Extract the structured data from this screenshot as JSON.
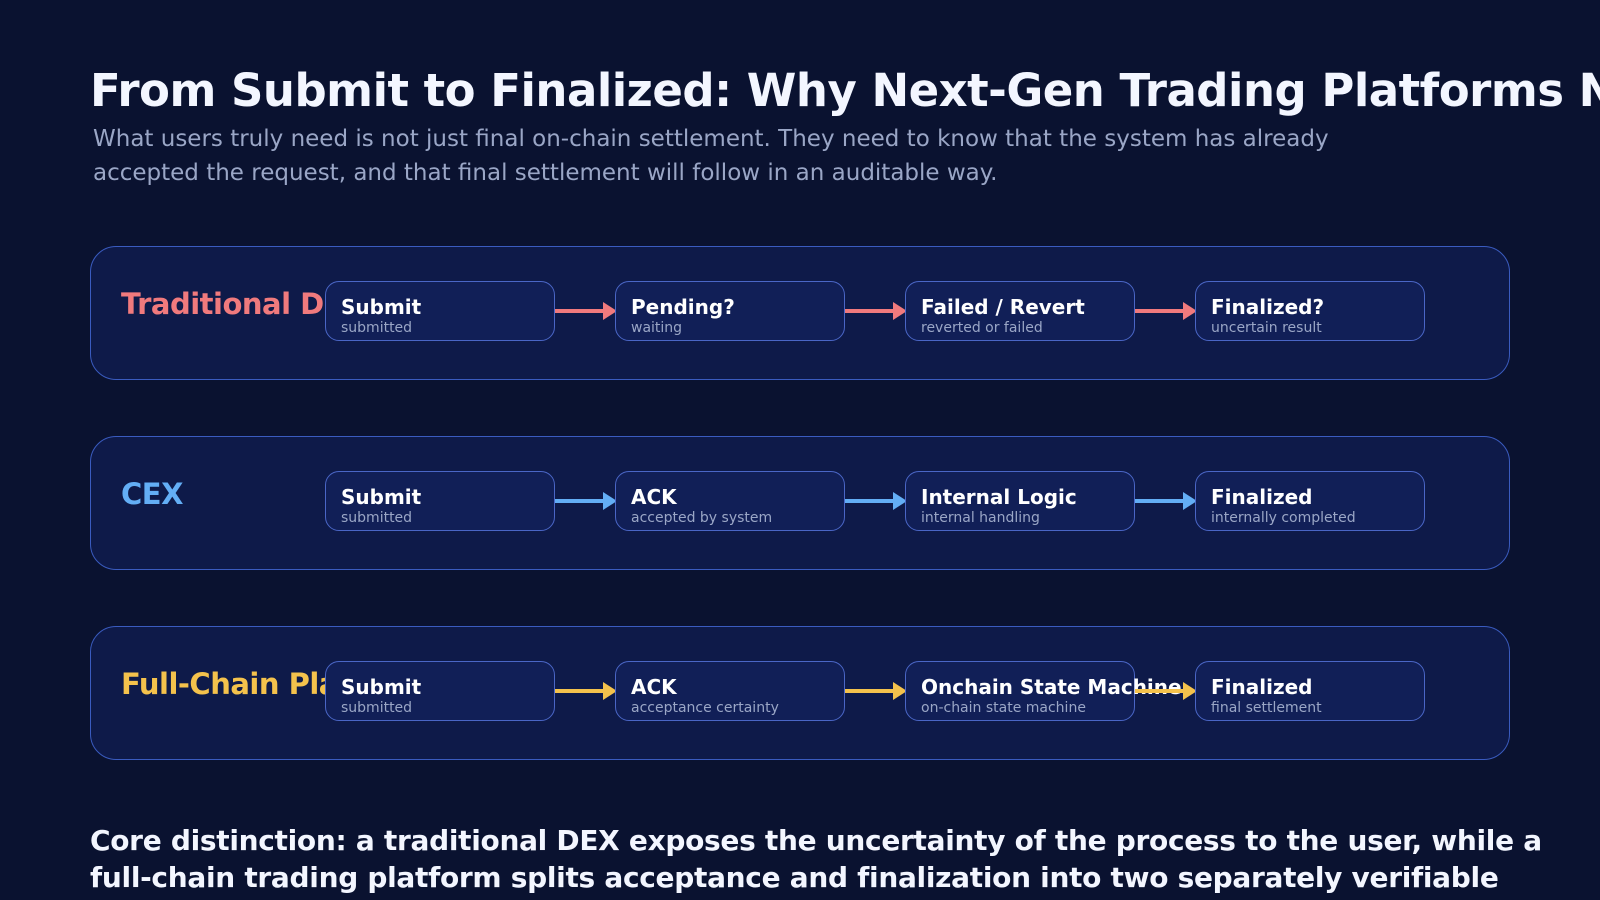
{
  "title": "From Submit to Finalized: Why Next-Gen Trading Platforms Need Dual-Layer Certainty",
  "subtitle": "What users truly need is not just final on-chain settlement. They need to know that the system has already accepted the request, and that final settlement will follow in an auditable way.",
  "lanes": [
    {
      "label": "Traditional DEX",
      "color": "#f07a7d",
      "steps": [
        {
          "title": "Submit",
          "sub": "submitted"
        },
        {
          "title": "Pending?",
          "sub": "waiting"
        },
        {
          "title": "Failed / Revert",
          "sub": "reverted or failed"
        },
        {
          "title": "Finalized?",
          "sub": "uncertain result"
        }
      ]
    },
    {
      "label": "CEX",
      "color": "#63aef5",
      "steps": [
        {
          "title": "Submit",
          "sub": "submitted"
        },
        {
          "title": "ACK",
          "sub": "accepted by system"
        },
        {
          "title": "Internal Logic",
          "sub": "internal handling"
        },
        {
          "title": "Finalized",
          "sub": "internally completed"
        }
      ]
    },
    {
      "label": "Full-Chain Platform",
      "color": "#f4c24c",
      "steps": [
        {
          "title": "Submit",
          "sub": "submitted"
        },
        {
          "title": "ACK",
          "sub": "acceptance certainty"
        },
        {
          "title": "Onchain State Machine",
          "sub": "on-chain state machine"
        },
        {
          "title": "Finalized",
          "sub": "final settlement"
        }
      ]
    }
  ],
  "footer": "Core distinction: a traditional DEX exposes the uncertainty of the process to the user, while a full-chain trading platform splits acceptance and finalization into two separately verifiable layers."
}
